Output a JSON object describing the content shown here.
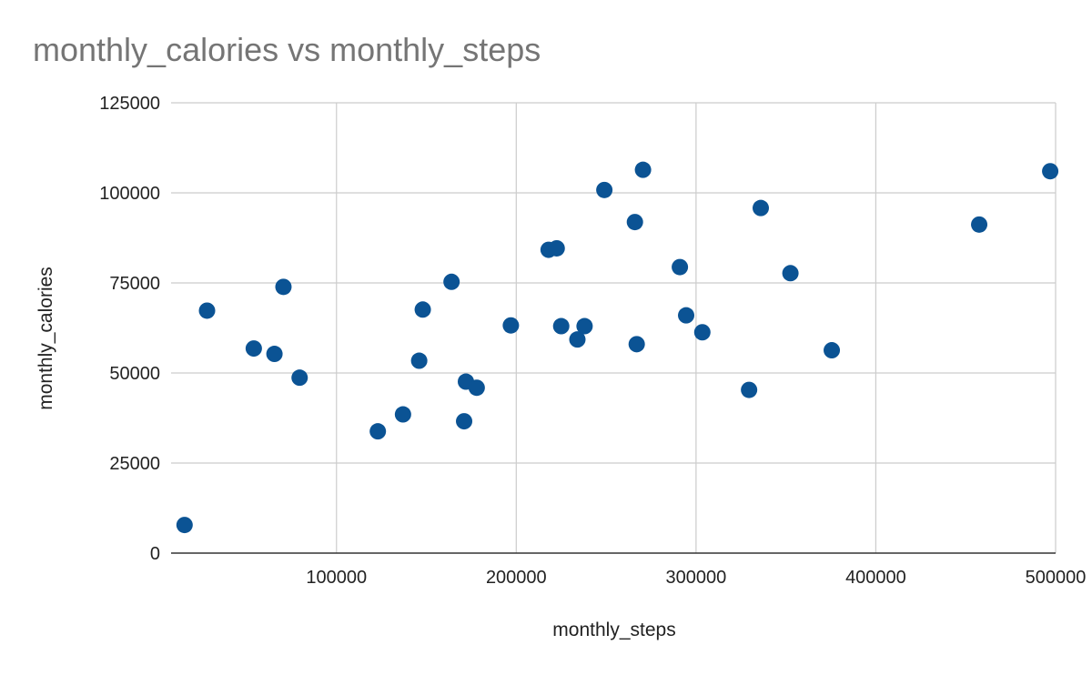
{
  "chart_data": {
    "type": "scatter",
    "title": "monthly_calories vs monthly_steps",
    "xlabel": "monthly_steps",
    "ylabel": "monthly_calories",
    "xlim": [
      8000,
      500000
    ],
    "ylim": [
      0,
      125000
    ],
    "x_ticks": [
      100000,
      200000,
      300000,
      400000,
      500000
    ],
    "y_ticks": [
      0,
      25000,
      50000,
      75000,
      100000,
      125000
    ],
    "grid": true,
    "legend": "none",
    "series": [
      {
        "color": "#0b5394",
        "points": [
          {
            "x": 15500,
            "y": 7800
          },
          {
            "x": 28000,
            "y": 67300
          },
          {
            "x": 54000,
            "y": 56800
          },
          {
            "x": 65500,
            "y": 55300
          },
          {
            "x": 70500,
            "y": 73900
          },
          {
            "x": 79500,
            "y": 48700
          },
          {
            "x": 123000,
            "y": 33800
          },
          {
            "x": 137000,
            "y": 38500
          },
          {
            "x": 146000,
            "y": 53400
          },
          {
            "x": 148000,
            "y": 67600
          },
          {
            "x": 164000,
            "y": 75300
          },
          {
            "x": 172000,
            "y": 47600
          },
          {
            "x": 171000,
            "y": 36600
          },
          {
            "x": 178000,
            "y": 45900
          },
          {
            "x": 197000,
            "y": 63200
          },
          {
            "x": 218000,
            "y": 84200
          },
          {
            "x": 222500,
            "y": 84600
          },
          {
            "x": 225000,
            "y": 63000
          },
          {
            "x": 234000,
            "y": 59300
          },
          {
            "x": 238000,
            "y": 63000
          },
          {
            "x": 249000,
            "y": 100800
          },
          {
            "x": 266000,
            "y": 91900
          },
          {
            "x": 267000,
            "y": 58000
          },
          {
            "x": 270500,
            "y": 106400
          },
          {
            "x": 291000,
            "y": 79400
          },
          {
            "x": 294500,
            "y": 66000
          },
          {
            "x": 303500,
            "y": 61300
          },
          {
            "x": 329500,
            "y": 45300
          },
          {
            "x": 336000,
            "y": 95800
          },
          {
            "x": 352500,
            "y": 77700
          },
          {
            "x": 375500,
            "y": 56300
          },
          {
            "x": 457500,
            "y": 91200
          },
          {
            "x": 497000,
            "y": 106000
          }
        ]
      }
    ]
  }
}
